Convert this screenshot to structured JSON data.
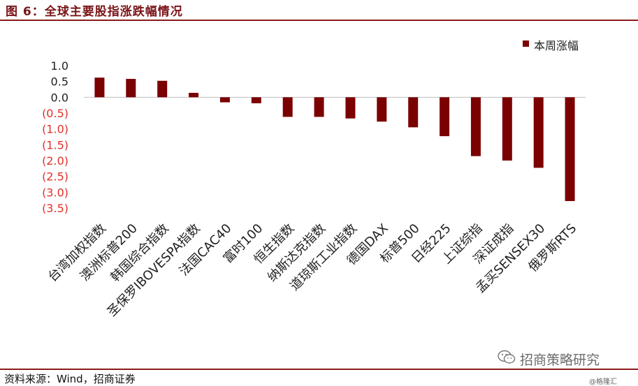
{
  "figure": {
    "title": "图 6：全球主要股指涨跌幅情况",
    "source": "资料来源：Wind，招商证券",
    "watermark": "招商策略研究",
    "credit": "@格隆汇"
  },
  "colors": {
    "bar": "#7b0000",
    "rule": "#8b1a1a",
    "negative_tick": "#e0302a",
    "positive_tick": "#222222"
  },
  "icons": {
    "watermark": "wechat-icon"
  },
  "chart_data": {
    "type": "bar",
    "ylim": [
      -3.5,
      1.0
    ],
    "yticks": [
      1.0,
      0.5,
      0.0,
      -0.5,
      -1.0,
      -1.5,
      -2.0,
      -2.5,
      -3.0,
      -3.5
    ],
    "ytick_labels": [
      "1.0",
      "0.5",
      "0.0",
      "(0.5)",
      "(1.0)",
      "(1.5)",
      "(2.0)",
      "(2.5)",
      "(3.0)",
      "(3.5)"
    ],
    "categories": [
      "台湾加权指数",
      "澳洲标普200",
      "韩国综合指数",
      "圣保罗IBOVESPA指数",
      "法国CAC40",
      "富时100",
      "恒生指数",
      "纳斯达克指数",
      "道琼斯工业指数",
      "德国DAX",
      "标普500",
      "日经225",
      "上证综指",
      "深证成指",
      "孟买SENSEX30",
      "俄罗斯RTS"
    ],
    "series": [
      {
        "name": "本周涨幅",
        "values": [
          0.62,
          0.58,
          0.52,
          0.14,
          -0.16,
          -0.19,
          -0.62,
          -0.62,
          -0.67,
          -0.77,
          -0.95,
          -1.23,
          -1.86,
          -2.0,
          -2.23,
          -3.28
        ]
      }
    ],
    "grid": false,
    "legend_position": "top-right"
  }
}
